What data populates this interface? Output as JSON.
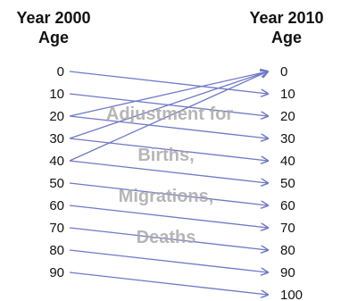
{
  "headers": {
    "left_year": "Year 2000",
    "left_sub": "Age",
    "right_year": "Year 2010",
    "right_sub": "Age"
  },
  "left_ages": [
    "0",
    "10",
    "20",
    "30",
    "40",
    "50",
    "60",
    "70",
    "80",
    "90"
  ],
  "right_ages": [
    "0",
    "10",
    "20",
    "30",
    "40",
    "50",
    "60",
    "70",
    "80",
    "90",
    "100"
  ],
  "flows": [
    {
      "from": "0",
      "to": "10"
    },
    {
      "from": "10",
      "to": "20"
    },
    {
      "from": "20",
      "to": "30"
    },
    {
      "from": "30",
      "to": "40"
    },
    {
      "from": "40",
      "to": "50"
    },
    {
      "from": "50",
      "to": "60"
    },
    {
      "from": "60",
      "to": "70"
    },
    {
      "from": "70",
      "to": "80"
    },
    {
      "from": "80",
      "to": "90"
    },
    {
      "from": "90",
      "to": "100"
    },
    {
      "from": "20",
      "to": "0"
    },
    {
      "from": "30",
      "to": "0"
    },
    {
      "from": "40",
      "to": "0"
    }
  ],
  "adjustment_lines": [
    "Adjustment for",
    "Births,",
    "Migrations,",
    "Deaths"
  ],
  "colors": {
    "arrow": "#6f78c8",
    "adjustment_text": "#a9a9a9",
    "text": "#111111"
  }
}
